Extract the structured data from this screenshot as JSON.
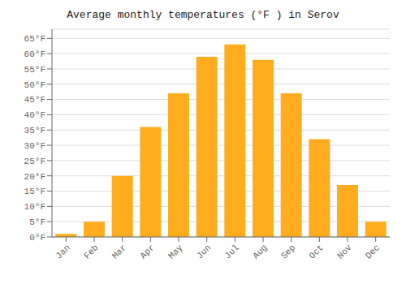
{
  "chart_data": {
    "type": "bar",
    "title": "Average monthly temperatures (°F ) in Serov",
    "categories": [
      "Jan",
      "Feb",
      "Mar",
      "Apr",
      "May",
      "Jun",
      "Jul",
      "Aug",
      "Sep",
      "Oct",
      "Nov",
      "Dec"
    ],
    "values": [
      1,
      5,
      20,
      36,
      47,
      59,
      63,
      58,
      47,
      32,
      17,
      5
    ],
    "color": "#FFAD1F",
    "ylim": [
      0,
      68
    ],
    "yticks": [
      {
        "value": 0,
        "label": "0°F"
      },
      {
        "value": 5,
        "label": "5°F"
      },
      {
        "value": 10,
        "label": "10°F"
      },
      {
        "value": 15,
        "label": "15°F"
      },
      {
        "value": 20,
        "label": "20°F"
      },
      {
        "value": 25,
        "label": "25°F"
      },
      {
        "value": 30,
        "label": "30°F"
      },
      {
        "value": 35,
        "label": "35°F"
      },
      {
        "value": 40,
        "label": "40°F"
      },
      {
        "value": 45,
        "label": "45°F"
      },
      {
        "value": 50,
        "label": "50°F"
      },
      {
        "value": 55,
        "label": "55°F"
      },
      {
        "value": 60,
        "label": "60°F"
      },
      {
        "value": 65,
        "label": "65°F"
      }
    ],
    "grid": true
  }
}
